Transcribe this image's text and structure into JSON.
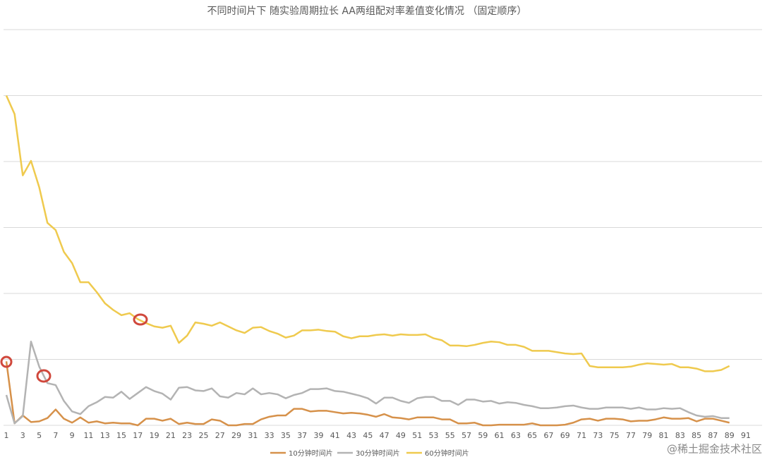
{
  "chart_data": {
    "type": "line",
    "title": "不同时间片下 随实验周期拉长 AA两组配对率差值变化情况 （固定顺序）",
    "categories": [
      1,
      null,
      3,
      null,
      5,
      null,
      7,
      null,
      9,
      null,
      11,
      null,
      13,
      null,
      15,
      null,
      17,
      null,
      19,
      null,
      21,
      null,
      23,
      null,
      25,
      null,
      27,
      null,
      29,
      null,
      31,
      null,
      33,
      null,
      35,
      null,
      37,
      null,
      39,
      null,
      41,
      null,
      43,
      null,
      45,
      null,
      47,
      null,
      49,
      null,
      51,
      null,
      53,
      null,
      55,
      null,
      57,
      null,
      59,
      null,
      61,
      null,
      63,
      null,
      65,
      null,
      67,
      null,
      69,
      null,
      71,
      null,
      73,
      null,
      75,
      null,
      77,
      null,
      79,
      null,
      81,
      null,
      83,
      null,
      85,
      null,
      87,
      null,
      89,
      null,
      91
    ],
    "ylim": [
      0,
      6
    ],
    "ygrid": [
      0,
      1,
      2,
      3,
      4,
      5,
      6
    ],
    "grid": true,
    "series": [
      {
        "name": "10分钟时间片",
        "color": "#d6914a",
        "values": [
          0.97,
          0.03,
          0.15,
          0.05,
          0.06,
          0.11,
          0.24,
          0.1,
          0.04,
          0.12,
          0.04,
          0.06,
          0.03,
          0.04,
          0.03,
          0.03,
          0,
          0.1,
          0.1,
          0.07,
          0.1,
          0.02,
          0.04,
          0.02,
          0.02,
          0.09,
          0.07,
          0,
          0,
          0.02,
          0.02,
          0.09,
          0.13,
          0.15,
          0.15,
          0.25,
          0.25,
          0.21,
          0.22,
          0.22,
          0.2,
          0.18,
          0.19,
          0.18,
          0.16,
          0.13,
          0.17,
          0.12,
          0.11,
          0.09,
          0.12,
          0.12,
          0.12,
          0.09,
          0.09,
          0.03,
          0.03,
          0.04,
          0,
          0,
          0.01,
          0.01,
          0.01,
          0.01,
          0.03,
          0,
          0,
          0,
          0.01,
          0.04,
          0.09,
          0.1,
          0.07,
          0.1,
          0.1,
          0.09,
          0.06,
          0.07,
          0.07,
          0.09,
          0.12,
          0.1,
          0.1,
          0.11,
          0.06,
          0.1,
          0.1,
          0.07,
          0.04,
          null,
          null
        ]
      },
      {
        "name": "30分钟时间片",
        "color": "#b3b3b3",
        "values": [
          0.46,
          0.03,
          0.14,
          1.27,
          0.89,
          0.64,
          0.61,
          0.37,
          0.21,
          0.17,
          0.29,
          0.35,
          0.43,
          0.42,
          0.51,
          0.4,
          0.49,
          0.58,
          0.52,
          0.48,
          0.39,
          0.57,
          0.58,
          0.53,
          0.52,
          0.56,
          0.44,
          0.42,
          0.49,
          0.47,
          0.56,
          0.47,
          0.49,
          0.47,
          0.41,
          0.46,
          0.49,
          0.55,
          0.55,
          0.56,
          0.52,
          0.51,
          0.48,
          0.45,
          0.41,
          0.33,
          0.42,
          0.42,
          0.37,
          0.34,
          0.41,
          0.43,
          0.43,
          0.37,
          0.37,
          0.31,
          0.39,
          0.39,
          0.36,
          0.37,
          0.33,
          0.35,
          0.34,
          0.31,
          0.29,
          0.26,
          0.26,
          0.27,
          0.29,
          0.3,
          0.27,
          0.25,
          0.25,
          0.27,
          0.27,
          0.27,
          0.25,
          0.27,
          0.24,
          0.24,
          0.26,
          0.25,
          0.26,
          0.2,
          0.15,
          0.13,
          0.14,
          0.11,
          0.11,
          null,
          null
        ]
      },
      {
        "name": "60分钟时间片",
        "color": "#efca4e",
        "values": [
          5.0,
          4.72,
          3.79,
          4.01,
          3.61,
          3.07,
          2.96,
          2.63,
          2.46,
          2.17,
          2.17,
          2.02,
          1.85,
          1.75,
          1.67,
          1.7,
          1.61,
          1.55,
          1.5,
          1.48,
          1.51,
          1.25,
          1.36,
          1.56,
          1.54,
          1.51,
          1.56,
          1.5,
          1.44,
          1.4,
          1.48,
          1.49,
          1.43,
          1.39,
          1.33,
          1.36,
          1.44,
          1.44,
          1.45,
          1.43,
          1.42,
          1.35,
          1.32,
          1.35,
          1.35,
          1.37,
          1.38,
          1.36,
          1.38,
          1.37,
          1.37,
          1.38,
          1.32,
          1.29,
          1.21,
          1.21,
          1.2,
          1.22,
          1.25,
          1.27,
          1.26,
          1.22,
          1.22,
          1.19,
          1.13,
          1.13,
          1.13,
          1.11,
          1.09,
          1.08,
          1.09,
          0.9,
          0.88,
          0.88,
          0.88,
          0.88,
          0.89,
          0.92,
          0.94,
          0.93,
          0.92,
          0.93,
          0.88,
          0.88,
          0.86,
          0.82,
          0.82,
          0.84,
          0.9,
          null,
          null
        ]
      }
    ],
    "legend": "bottom",
    "watermark": "@稀土掘金技术社区"
  }
}
